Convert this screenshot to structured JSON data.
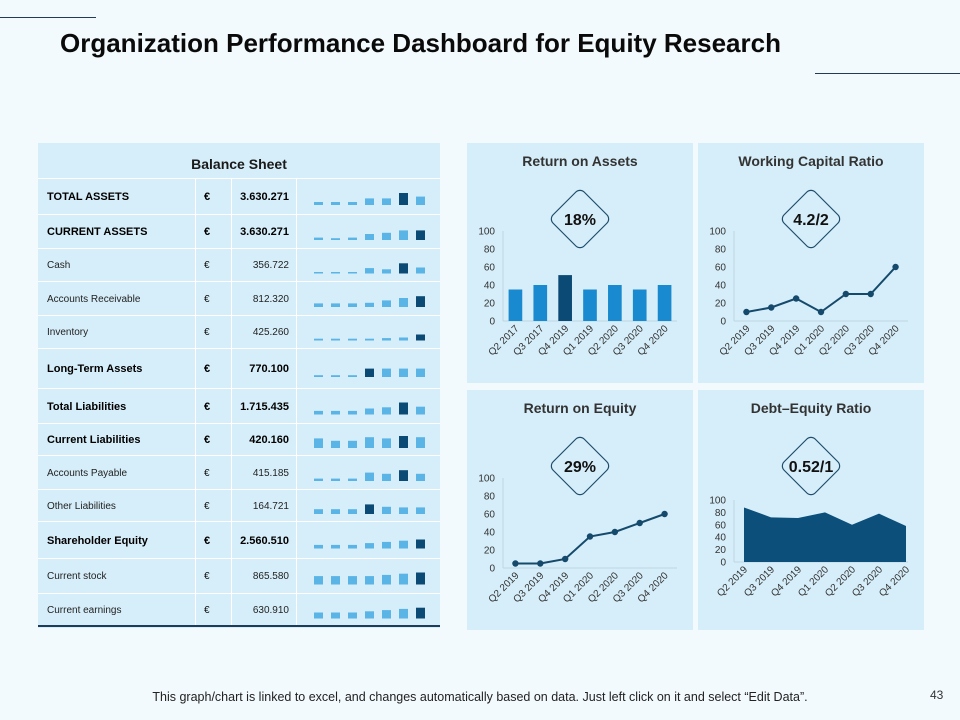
{
  "title": "Organization Performance Dashboard for Equity Research",
  "footer": "This graph/chart is linked to excel, and changes automatically based on data. Just left click on it and select “Edit Data”.",
  "page_number": "43",
  "colors": {
    "light": "#5ab4e5",
    "mid": "#1a8ad0",
    "dark": "#0b4a75",
    "area": "#0b4f7a",
    "line": "#154a6c",
    "panel": "#d6eef9"
  },
  "balance_sheet": {
    "title": "Balance Sheet",
    "currency": "€",
    "rows": [
      {
        "label": "TOTAL ASSETS",
        "value": "3.630.271",
        "bold": true,
        "spark": [
          0.25,
          0.25,
          0.25,
          0.55,
          0.55,
          1.0,
          0.7
        ],
        "highlight": 5
      },
      {
        "label": "CURRENT  ASSETS",
        "value": "3.630.271",
        "bold": true,
        "spark": [
          0.2,
          0.15,
          0.2,
          0.5,
          0.6,
          0.8,
          0.8
        ],
        "highlight": 6
      },
      {
        "label": "Cash",
        "value": "356.722",
        "bold": false,
        "spark": [
          0.1,
          0.1,
          0.1,
          0.45,
          0.35,
          0.85,
          0.5
        ],
        "highlight": 5
      },
      {
        "label": "Accounts Receivable",
        "value": "812.320",
        "bold": false,
        "spark": [
          0.3,
          0.3,
          0.3,
          0.35,
          0.55,
          0.75,
          0.9
        ],
        "highlight": 6
      },
      {
        "label": "Inventory",
        "value": "425.260",
        "bold": false,
        "spark": [
          0.15,
          0.15,
          0.15,
          0.15,
          0.2,
          0.25,
          0.5
        ],
        "highlight": 6
      },
      {
        "label": "Long-Term Assets",
        "value": "770.100",
        "bold": true,
        "spark": [
          0.15,
          0.15,
          0.15,
          0.7,
          0.7,
          0.7,
          0.7
        ],
        "highlight": 3
      },
      {
        "label": "Total Liabilities",
        "value": "1.715.435",
        "bold": true,
        "spark": [
          0.3,
          0.3,
          0.3,
          0.5,
          0.6,
          1.0,
          0.65
        ],
        "highlight": 5
      },
      {
        "label": "Current Liabilities",
        "value": "420.160",
        "bold": true,
        "spark": [
          0.8,
          0.6,
          0.6,
          0.9,
          0.8,
          1.0,
          0.9
        ],
        "highlight": 5
      },
      {
        "label": "Accounts Payable",
        "value": "415.185",
        "bold": false,
        "spark": [
          0.2,
          0.2,
          0.2,
          0.7,
          0.6,
          0.9,
          0.6
        ],
        "highlight": 5
      },
      {
        "label": "Other Liabilities",
        "value": "164.721",
        "bold": false,
        "spark": [
          0.4,
          0.4,
          0.4,
          0.8,
          0.6,
          0.55,
          0.55
        ],
        "highlight": 3
      },
      {
        "label": "Shareholder Equity",
        "value": "2.560.510",
        "bold": true,
        "spark": [
          0.3,
          0.3,
          0.3,
          0.45,
          0.55,
          0.65,
          0.75
        ],
        "highlight": 6
      },
      {
        "label": "Current stock",
        "value": "865.580",
        "bold": false,
        "spark": [
          0.7,
          0.7,
          0.7,
          0.7,
          0.8,
          0.9,
          1.0
        ],
        "highlight": 6
      },
      {
        "label": "Current earnings",
        "value": "630.910",
        "bold": false,
        "spark": [
          0.5,
          0.5,
          0.5,
          0.6,
          0.7,
          0.8,
          0.9
        ],
        "highlight": 6
      }
    ]
  },
  "chart_data": [
    {
      "id": "roa",
      "type": "bar",
      "title": "Return on Assets",
      "badge": "18%",
      "categories": [
        "Q2 2017",
        "Q3 2017",
        "Q4 2019",
        "Q1 2019",
        "Q2 2020",
        "Q3 2020",
        "Q4 2020"
      ],
      "values": [
        35,
        40,
        51,
        35,
        40,
        35,
        40
      ],
      "highlight_index": 2,
      "ylim": [
        0,
        100
      ],
      "yticks": [
        "0",
        "20",
        "40",
        "60",
        "80",
        "100"
      ]
    },
    {
      "id": "wcr",
      "type": "line",
      "title": "Working Capital Ratio",
      "badge": "4.2/2",
      "categories": [
        "Q2 2019",
        "Q3 2019",
        "Q4 2019",
        "Q1 2020",
        "Q2 2020",
        "Q3 2020",
        "Q4 2020"
      ],
      "values": [
        10,
        15,
        25,
        10,
        30,
        30,
        60
      ],
      "ylim": [
        0,
        100
      ],
      "yticks": [
        "0",
        "20",
        "40",
        "60",
        "80",
        "100"
      ]
    },
    {
      "id": "roe",
      "type": "line",
      "title": "Return on Equity",
      "badge": "29%",
      "categories": [
        "Q2 2019",
        "Q3 2019",
        "Q4 2019",
        "Q1 2020",
        "Q2 2020",
        "Q3 2020",
        "Q4 2020"
      ],
      "values": [
        5,
        5,
        10,
        35,
        40,
        50,
        60
      ],
      "ylim": [
        0,
        100
      ],
      "yticks": [
        "0",
        "20",
        "40",
        "60",
        "80",
        "100"
      ]
    },
    {
      "id": "der",
      "type": "area",
      "title": "Debt–Equity Ratio",
      "badge": "0.52/1",
      "categories": [
        "Q2 2019",
        "Q3 2019",
        "Q4 2019",
        "Q1 2020",
        "Q2 2020",
        "Q3 2020",
        "Q4 2020"
      ],
      "values": [
        88,
        72,
        71,
        80,
        60,
        78,
        58
      ],
      "ylim": [
        0,
        100
      ],
      "yticks": [
        "0",
        "20",
        "40",
        "60",
        "80",
        "100"
      ]
    }
  ]
}
